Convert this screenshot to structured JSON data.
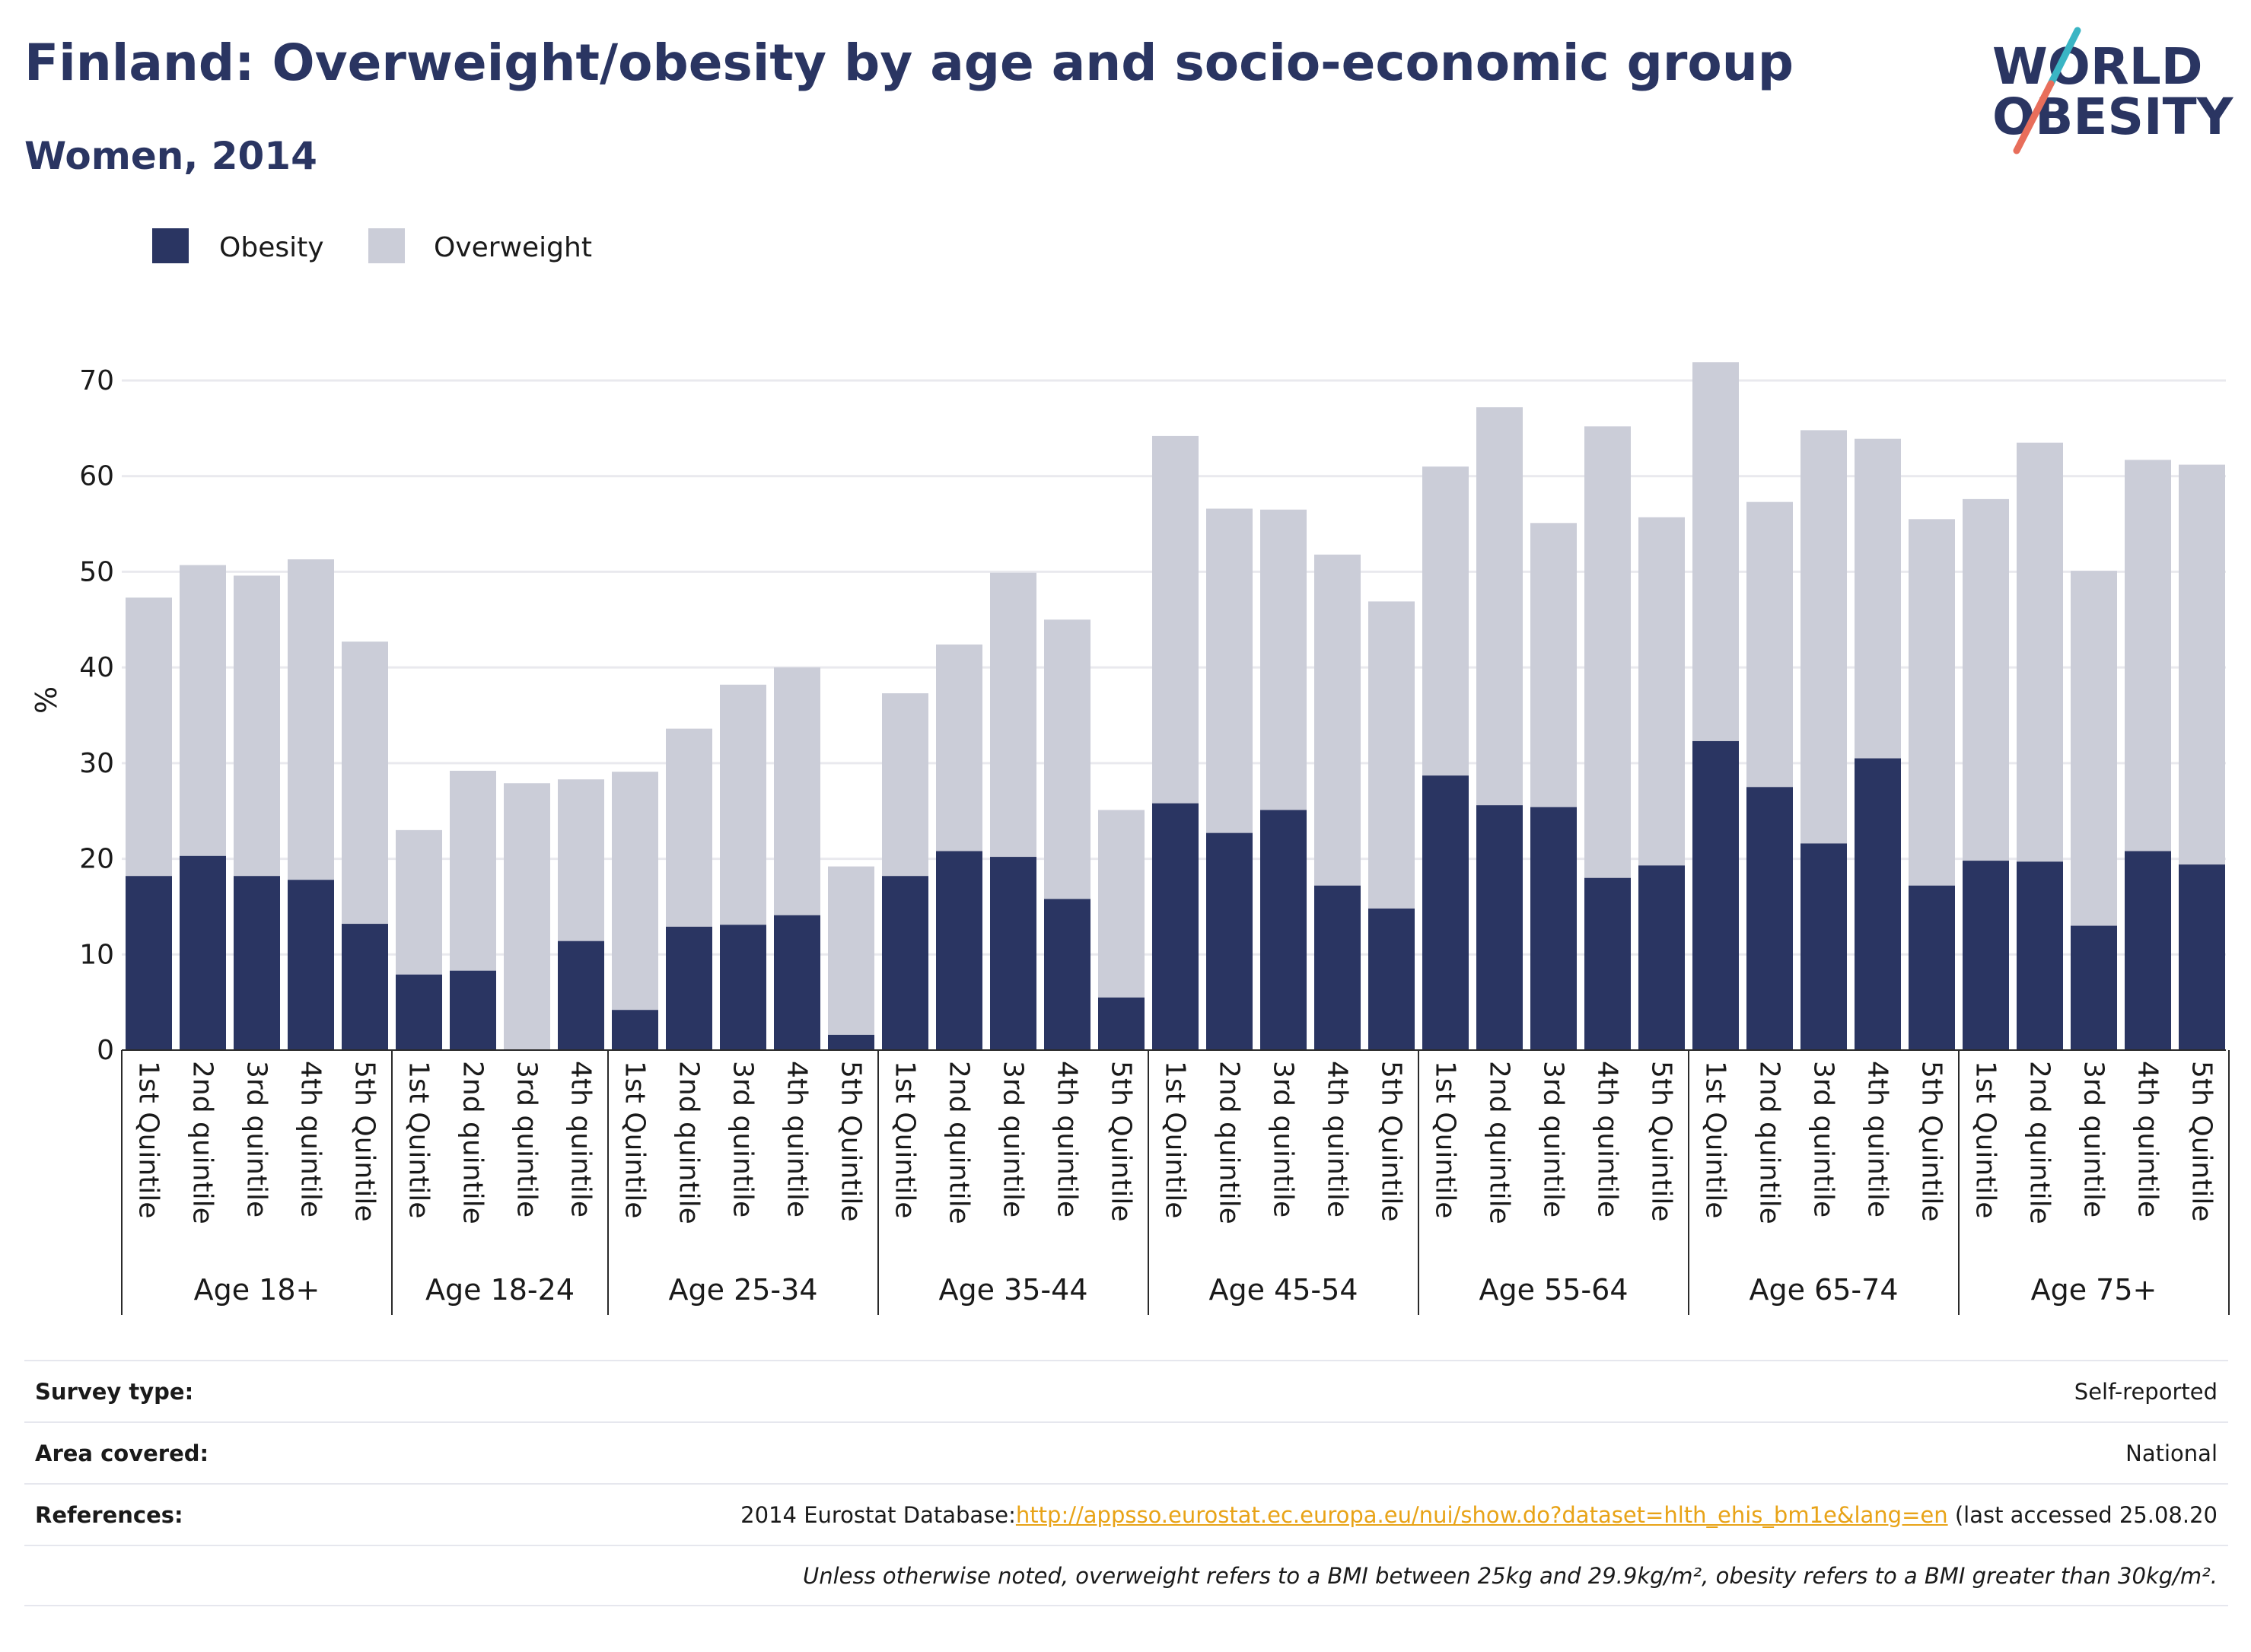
{
  "header": {
    "title": "Finland: Overweight/obesity by age and socio-economic group",
    "subtitle": "Women, 2014"
  },
  "logo": {
    "line1": "WORLD",
    "line2": "OBESITY"
  },
  "colors": {
    "obesity": "#2a3562",
    "overweight": "#cbcdd8",
    "grid": "#e9e9ee",
    "link": "#e8a317",
    "title": "#2a3562"
  },
  "legend": [
    {
      "label": "Obesity",
      "color": "#2a3562"
    },
    {
      "label": "Overweight",
      "color": "#cbcdd8"
    }
  ],
  "chart_data": {
    "type": "bar",
    "stacked": true,
    "ylabel": "%",
    "ylim": [
      0,
      72
    ],
    "yticks": [
      0,
      10,
      20,
      30,
      40,
      50,
      60,
      70
    ],
    "grid": true,
    "legend_position": "top-left",
    "groups": [
      {
        "label": "Age 18+",
        "categories": [
          "1st Quintile",
          "2nd quintile",
          "3rd quintile",
          "4th quintile",
          "5th Quintile"
        ],
        "obesity": [
          18.2,
          20.3,
          18.2,
          17.8,
          13.2
        ],
        "overweight": [
          29.1,
          30.4,
          31.4,
          33.5,
          29.5
        ]
      },
      {
        "label": "Age 18-24",
        "categories": [
          "1st Quintile",
          "2nd quintile",
          "3rd quintile",
          "4th quintile"
        ],
        "obesity": [
          7.9,
          8.3,
          0.0,
          11.4
        ],
        "overweight": [
          15.1,
          20.9,
          27.9,
          16.9
        ]
      },
      {
        "label": "Age 25-34",
        "categories": [
          "1st Quintile",
          "2nd quintile",
          "3rd quintile",
          "4th quintile",
          "5th Quintile"
        ],
        "obesity": [
          4.2,
          12.9,
          13.1,
          14.1,
          1.6
        ],
        "overweight": [
          24.9,
          20.7,
          25.1,
          25.9,
          17.6
        ]
      },
      {
        "label": "Age 35-44",
        "categories": [
          "1st Quintile",
          "2nd quintile",
          "3rd quintile",
          "4th quintile",
          "5th Quintile"
        ],
        "obesity": [
          18.2,
          20.8,
          20.2,
          15.8,
          5.5
        ],
        "overweight": [
          19.1,
          21.6,
          29.7,
          29.2,
          19.6
        ]
      },
      {
        "label": "Age 45-54",
        "categories": [
          "1st Quintile",
          "2nd quintile",
          "3rd quintile",
          "4th quintile",
          "5th Quintile"
        ],
        "obesity": [
          25.8,
          22.7,
          25.1,
          17.2,
          14.8
        ],
        "overweight": [
          38.4,
          33.9,
          31.4,
          34.6,
          32.1
        ]
      },
      {
        "label": "Age 55-64",
        "categories": [
          "1st Quintile",
          "2nd quintile",
          "3rd quintile",
          "4th quintile",
          "5th Quintile"
        ],
        "obesity": [
          28.7,
          25.6,
          25.4,
          18.0,
          19.3
        ],
        "overweight": [
          32.3,
          41.6,
          29.7,
          47.2,
          36.4
        ]
      },
      {
        "label": "Age 65-74",
        "categories": [
          "1st Quintile",
          "2nd quintile",
          "3rd quintile",
          "4th quintile",
          "5th Quintile"
        ],
        "obesity": [
          32.3,
          27.5,
          21.6,
          30.5,
          17.2
        ],
        "overweight": [
          39.6,
          29.8,
          43.2,
          33.4,
          38.3
        ]
      },
      {
        "label": "Age 75+",
        "categories": [
          "1st Quintile",
          "2nd quintile",
          "3rd quintile",
          "4th quintile",
          "5th Quintile"
        ],
        "obesity": [
          19.8,
          19.7,
          13.0,
          20.8,
          19.4
        ],
        "overweight": [
          37.8,
          43.8,
          37.1,
          40.9,
          41.8
        ]
      }
    ]
  },
  "info": {
    "survey_type_label": "Survey type:",
    "survey_type_value": "Self-reported",
    "area_label": "Area covered:",
    "area_value": "National",
    "references_label": "References:",
    "references_prefix": "2014 Eurostat Database:",
    "references_link": "http://appsso.eurostat.ec.europa.eu/nui/show.do?dataset=hlth_ehis_bm1e&lang=en",
    "references_suffix": " (last accessed 25.08.20",
    "note": "Unless otherwise noted, overweight refers to a BMI between 25kg and 29.9kg/m², obesity refers to a BMI greater than 30kg/m²."
  }
}
